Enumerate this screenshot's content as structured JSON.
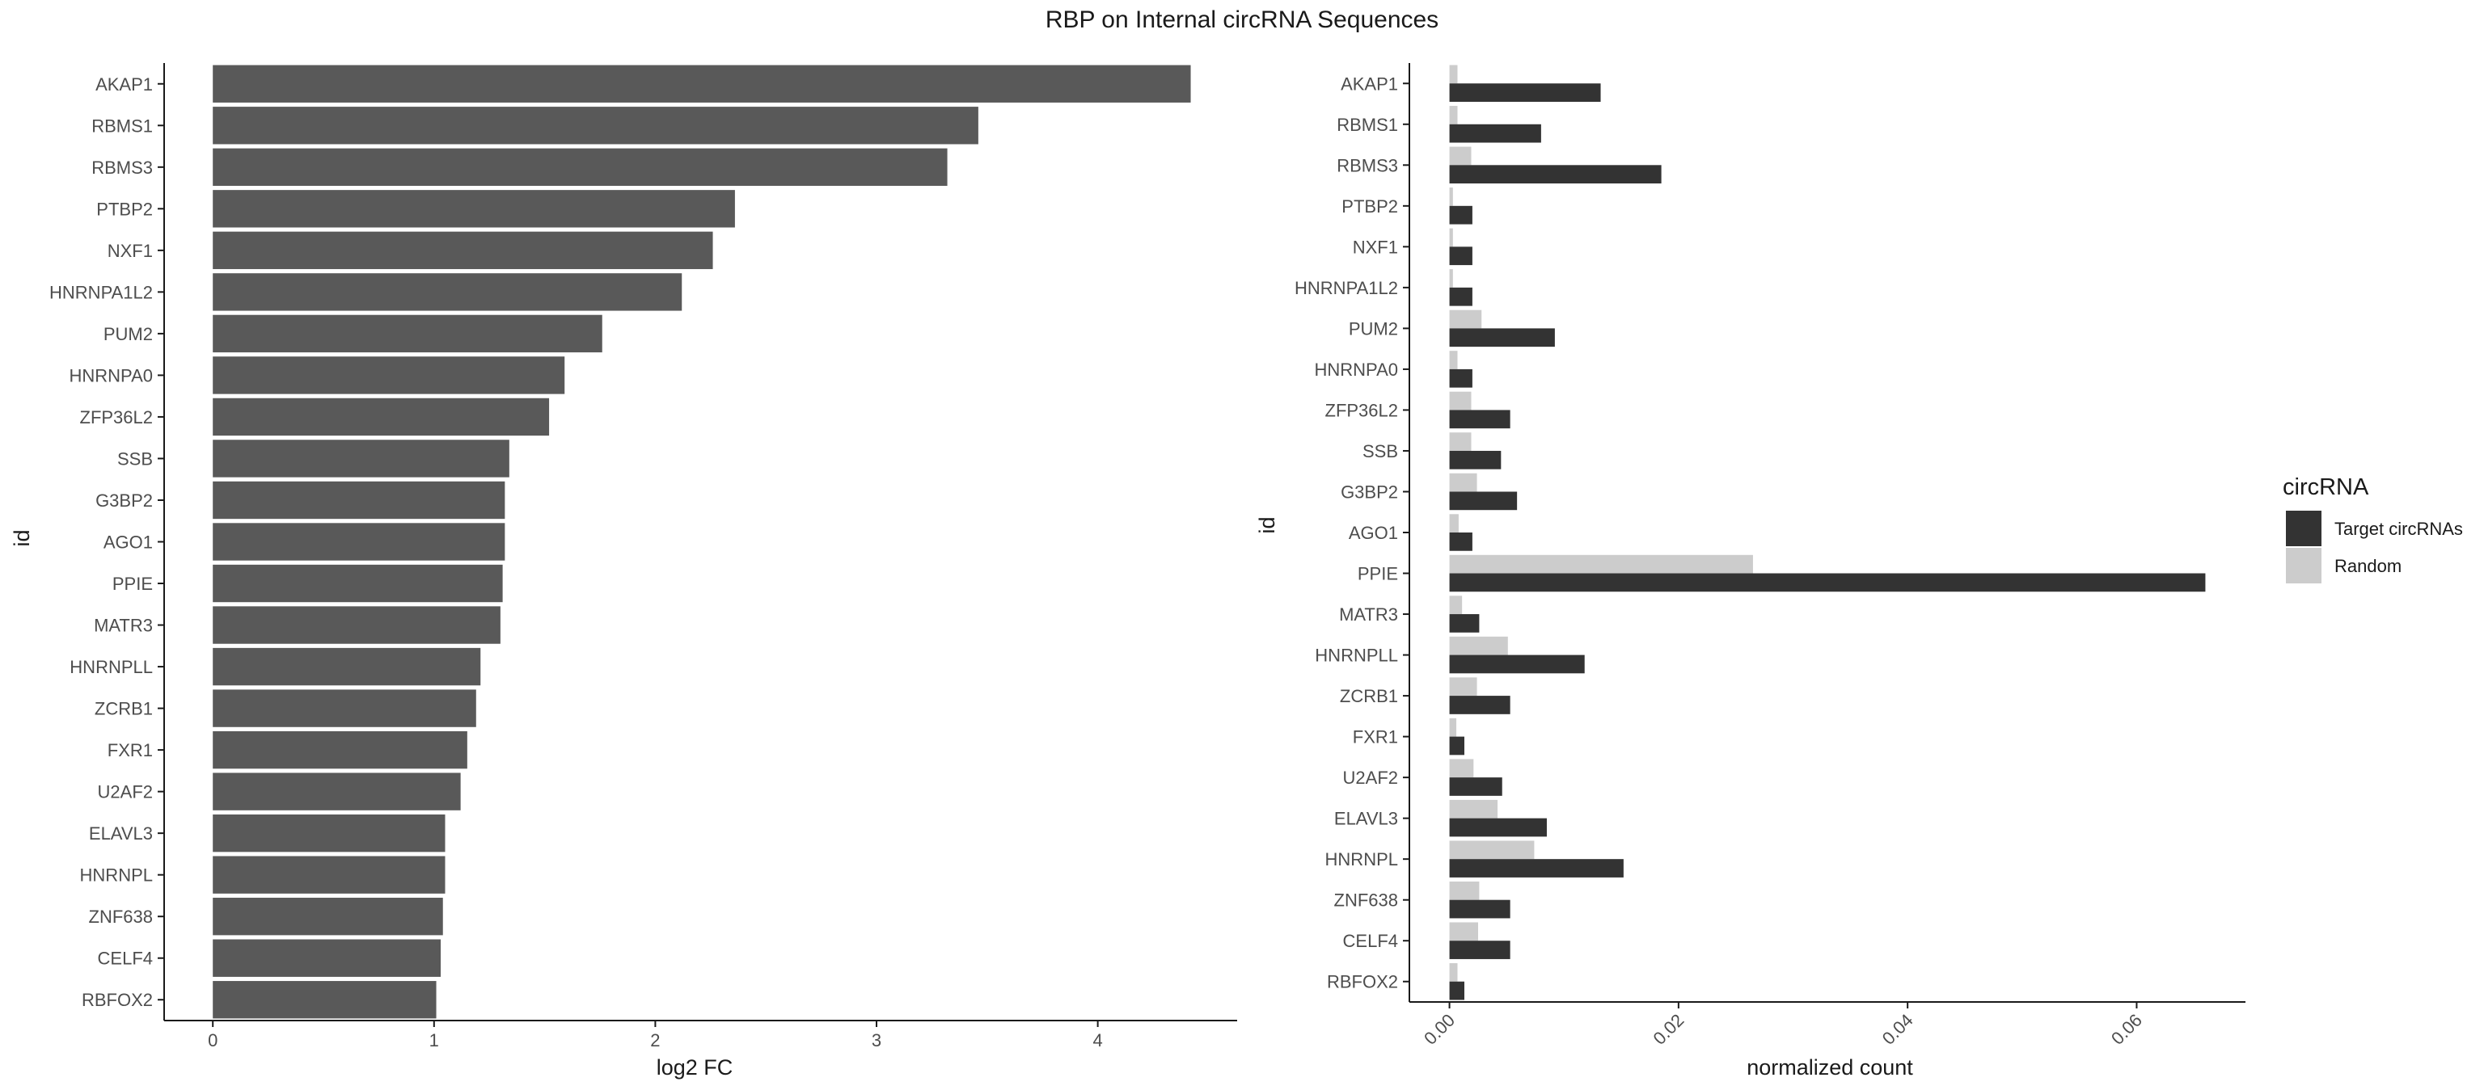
{
  "title": "RBP on Internal circRNA Sequences",
  "chart_data": [
    {
      "type": "bar",
      "orientation": "horizontal",
      "xlabel": "log2 FC",
      "ylabel": "id",
      "xlim": [
        -0.22,
        4.63
      ],
      "x_ticks": [
        "0",
        "1",
        "2",
        "3",
        "4"
      ],
      "categories": [
        "AKAP1",
        "RBMS1",
        "RBMS3",
        "PTBP2",
        "NXF1",
        "HNRNPA1L2",
        "PUM2",
        "HNRNPA0",
        "ZFP36L2",
        "SSB",
        "G3BP2",
        "AGO1",
        "PPIE",
        "MATR3",
        "HNRNPLL",
        "ZCRB1",
        "FXR1",
        "U2AF2",
        "ELAVL3",
        "HNRNPL",
        "ZNF638",
        "CELF4",
        "RBFOX2"
      ],
      "values": [
        4.42,
        3.46,
        3.32,
        2.36,
        2.26,
        2.12,
        1.76,
        1.59,
        1.52,
        1.34,
        1.32,
        1.32,
        1.31,
        1.3,
        1.21,
        1.19,
        1.15,
        1.12,
        1.05,
        1.05,
        1.04,
        1.03,
        1.01
      ],
      "bar_color": "#595959",
      "grid": false
    },
    {
      "type": "bar",
      "orientation": "horizontal",
      "grouped": true,
      "xlabel": "normalized count",
      "ylabel": "id",
      "xlim": [
        -0.0035,
        0.0695
      ],
      "x_ticks": [
        "0.00",
        "0.02",
        "0.04",
        "0.06"
      ],
      "x_tick_rotation": -45,
      "categories": [
        "AKAP1",
        "RBMS1",
        "RBMS3",
        "PTBP2",
        "NXF1",
        "HNRNPA1L2",
        "PUM2",
        "HNRNPA0",
        "ZFP36L2",
        "SSB",
        "G3BP2",
        "AGO1",
        "PPIE",
        "MATR3",
        "HNRNPLL",
        "ZCRB1",
        "FXR1",
        "U2AF2",
        "ELAVL3",
        "HNRNPL",
        "ZNF638",
        "CELF4",
        "RBFOX2"
      ],
      "series": [
        {
          "name": "Target circRNAs",
          "color": "#333333",
          "values": [
            0.0132,
            0.008,
            0.0185,
            0.002,
            0.002,
            0.002,
            0.0092,
            0.002,
            0.0053,
            0.0045,
            0.0059,
            0.002,
            0.066,
            0.0026,
            0.0118,
            0.0053,
            0.0013,
            0.0046,
            0.0085,
            0.0152,
            0.0053,
            0.0053,
            0.0013
          ]
        },
        {
          "name": "Random",
          "color": "#cccccc",
          "values": [
            0.0007,
            0.0007,
            0.0019,
            0.0003,
            0.0003,
            0.0003,
            0.0028,
            0.0007,
            0.0019,
            0.0019,
            0.0024,
            0.0008,
            0.0265,
            0.0011,
            0.0051,
            0.0024,
            0.0006,
            0.0021,
            0.0042,
            0.0074,
            0.0026,
            0.0025,
            0.0007
          ]
        }
      ],
      "legend": {
        "title": "circRNA",
        "placement": "right"
      },
      "grid": false
    }
  ]
}
